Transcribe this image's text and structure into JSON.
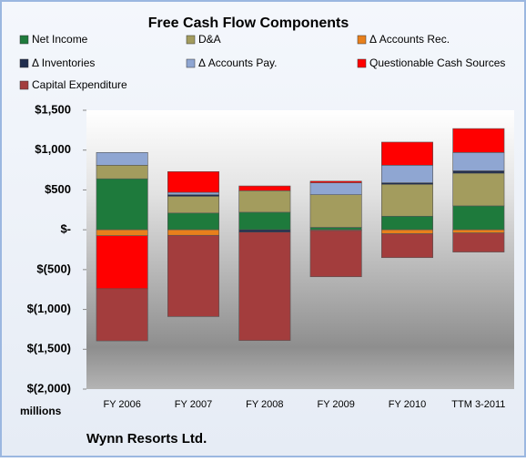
{
  "chart_data": {
    "type": "stacked-bar",
    "title": "Free Cash Flow Components",
    "categories": [
      "FY 2006",
      "FY 2007",
      "FY 2008",
      "FY 2009",
      "FY 2010",
      "TTM 3-2011"
    ],
    "series": [
      {
        "name": "Net Income",
        "color": "#1e7a3c",
        "values": [
          640,
          210,
          220,
          30,
          170,
          300
        ]
      },
      {
        "name": "D&A",
        "color": "#a39c5e",
        "values": [
          170,
          210,
          270,
          410,
          400,
          410
        ]
      },
      {
        "name": "Δ Accounts Rec.",
        "color": "#e8801c",
        "values": [
          -75,
          -70,
          0,
          -10,
          -50,
          -40
        ]
      },
      {
        "name": "Δ Inventories",
        "color": "#1f2d4e",
        "values": [
          0,
          20,
          -30,
          0,
          20,
          30
        ]
      },
      {
        "name": "Δ Accounts Pay.",
        "color": "#8fa6d2",
        "values": [
          160,
          30,
          0,
          150,
          220,
          230
        ]
      },
      {
        "name": "Questionable Cash Sources",
        "color": "#ff0000",
        "values": [
          -665,
          260,
          60,
          20,
          290,
          300
        ]
      },
      {
        "name": "Capital Expenditure",
        "color": "#a33d3d",
        "values": [
          -655,
          -1020,
          -1360,
          -580,
          -300,
          -240
        ]
      }
    ],
    "ylim": [
      -2000,
      1500
    ],
    "yticks": [
      {
        "value": 1500,
        "label": "$1,500"
      },
      {
        "value": 1000,
        "label": "$1,000"
      },
      {
        "value": 500,
        "label": "$500"
      },
      {
        "value": 0,
        "label": "$-"
      },
      {
        "value": -500,
        "label": "$(500)"
      },
      {
        "value": -1000,
        "label": "$(1,000)"
      },
      {
        "value": -1500,
        "label": "$(1,500)"
      },
      {
        "value": -2000,
        "label": "$(2,000)"
      }
    ],
    "y_label": "millions",
    "footer": "Wynn Resorts Ltd."
  }
}
